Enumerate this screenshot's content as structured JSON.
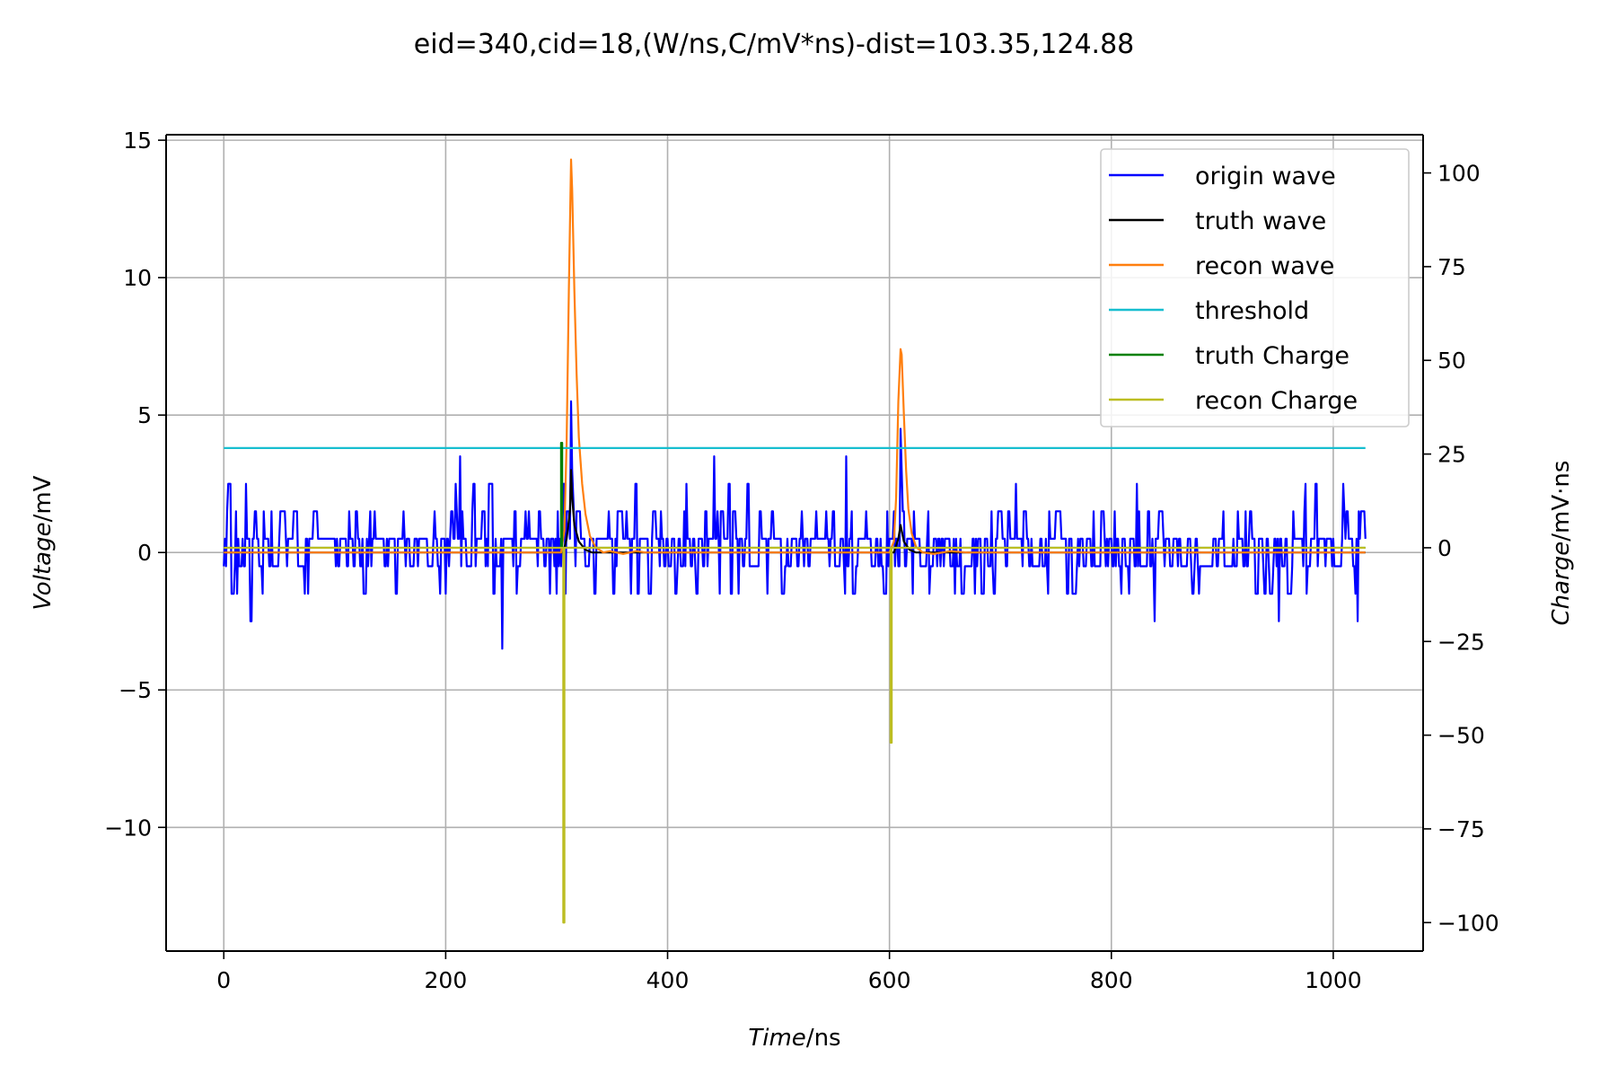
{
  "chart_data": {
    "type": "line",
    "title": "eid=340,cid=18,(W/ns,C/mV*ns)-dist=103.35,124.88",
    "xlabel": {
      "italic": "Time",
      "unit": "/ns"
    },
    "ylabel_left": {
      "italic": "Voltage",
      "unit": "/mV"
    },
    "ylabel_right": {
      "italic": "Charge",
      "unit": "/mV·ns"
    },
    "xlim": [
      -52,
      1081
    ],
    "ylim_left": [
      -14.5,
      15.2
    ],
    "ylim_right": [
      -107.6,
      110.2
    ],
    "xticks": [
      0,
      200,
      400,
      600,
      800,
      1000
    ],
    "yticks_left": [
      -10,
      -5,
      0,
      5,
      10,
      15
    ],
    "yticks_right": [
      -100,
      -75,
      -50,
      -25,
      0,
      25,
      50,
      75,
      100
    ],
    "xtick_labels": [
      "0",
      "200",
      "400",
      "600",
      "800",
      "1000"
    ],
    "ytick_labels_left": [
      "−10",
      "−5",
      "0",
      "5",
      "10",
      "15"
    ],
    "ytick_labels_right": [
      "−100",
      "−75",
      "−50",
      "−25",
      "0",
      "25",
      "50",
      "75",
      "100"
    ],
    "grid": true,
    "legend_position": "top-right",
    "series": [
      {
        "name": "origin wave",
        "color": "#0000ff",
        "axis": "left",
        "kind": "noise",
        "x_range": [
          0,
          1029
        ],
        "levels": [
          -2.5,
          -1.5,
          -0.5,
          0.5,
          1.5,
          2.5,
          3.5
        ],
        "spikes": [
          [
            4,
            2.5
          ],
          [
            7,
            -1.5
          ],
          [
            24,
            -2.5
          ],
          [
            213,
            3.5
          ],
          [
            251,
            -3.5
          ],
          [
            306,
            2.5
          ],
          [
            313,
            5.5
          ],
          [
            314,
            3.0
          ],
          [
            315,
            2.0
          ],
          [
            316,
            1.0
          ],
          [
            442,
            3.5
          ],
          [
            561,
            3.5
          ],
          [
            610,
            4.5
          ],
          [
            611,
            3.0
          ],
          [
            612,
            1.5
          ],
          [
            839,
            -2.5
          ],
          [
            951,
            -2.5
          ],
          [
            975,
            2.5
          ],
          [
            1022,
            -2.5
          ]
        ]
      },
      {
        "name": "truth wave",
        "color": "#000000",
        "axis": "left",
        "points": [
          [
            0,
            0
          ],
          [
            306,
            0
          ],
          [
            309,
            0.5
          ],
          [
            312,
            1.5
          ],
          [
            313,
            3.0
          ],
          [
            314,
            2.0
          ],
          [
            316,
            1.0
          ],
          [
            320,
            0.4
          ],
          [
            326,
            0.1
          ],
          [
            332,
            0
          ],
          [
            604,
            0
          ],
          [
            608,
            0.5
          ],
          [
            610,
            1.0
          ],
          [
            613,
            0.4
          ],
          [
            618,
            0.1
          ],
          [
            624,
            0
          ],
          [
            1029,
            0
          ]
        ]
      },
      {
        "name": "recon wave",
        "color": "#ff7f0e",
        "axis": "left",
        "points": [
          [
            0,
            0
          ],
          [
            304,
            0
          ],
          [
            307,
            0.8
          ],
          [
            309,
            4.0
          ],
          [
            311,
            9.5
          ],
          [
            313,
            14.3
          ],
          [
            314,
            13.2
          ],
          [
            316,
            9.5
          ],
          [
            318,
            6.5
          ],
          [
            320,
            4.2
          ],
          [
            323,
            2.5
          ],
          [
            326,
            1.4
          ],
          [
            330,
            0.6
          ],
          [
            335,
            0.2
          ],
          [
            342,
            0
          ],
          [
            348,
            0.05
          ],
          [
            360,
            -0.05
          ],
          [
            372,
            0.05
          ],
          [
            380,
            0
          ],
          [
            600,
            0
          ],
          [
            604,
            0.4
          ],
          [
            606,
            2.0
          ],
          [
            608,
            5.5
          ],
          [
            610,
            7.4
          ],
          [
            611,
            7.2
          ],
          [
            613,
            5.0
          ],
          [
            615,
            3.0
          ],
          [
            617,
            1.6
          ],
          [
            620,
            0.7
          ],
          [
            624,
            0.2
          ],
          [
            630,
            0
          ],
          [
            640,
            -0.05
          ],
          [
            655,
            0.05
          ],
          [
            670,
            0
          ],
          [
            1029,
            0
          ]
        ]
      },
      {
        "name": "threshold",
        "color": "#17becf",
        "axis": "left",
        "points": [
          [
            0,
            3.8
          ],
          [
            1029,
            3.8
          ]
        ]
      },
      {
        "name": "truth Charge",
        "color": "#008000",
        "axis": "right",
        "points": [
          [
            0,
            0
          ],
          [
            304,
            0
          ],
          [
            304,
            28
          ],
          [
            305,
            28
          ],
          [
            305,
            0
          ],
          [
            1029,
            0
          ]
        ]
      },
      {
        "name": "recon Charge",
        "color": "#bcbd22",
        "axis": "right",
        "points": [
          [
            0,
            0
          ],
          [
            306,
            0
          ],
          [
            306,
            -100
          ],
          [
            307,
            -100
          ],
          [
            307,
            0
          ],
          [
            601,
            0
          ],
          [
            601,
            -52
          ],
          [
            602,
            -52
          ],
          [
            602,
            0
          ],
          [
            1029,
            0
          ]
        ]
      }
    ]
  }
}
